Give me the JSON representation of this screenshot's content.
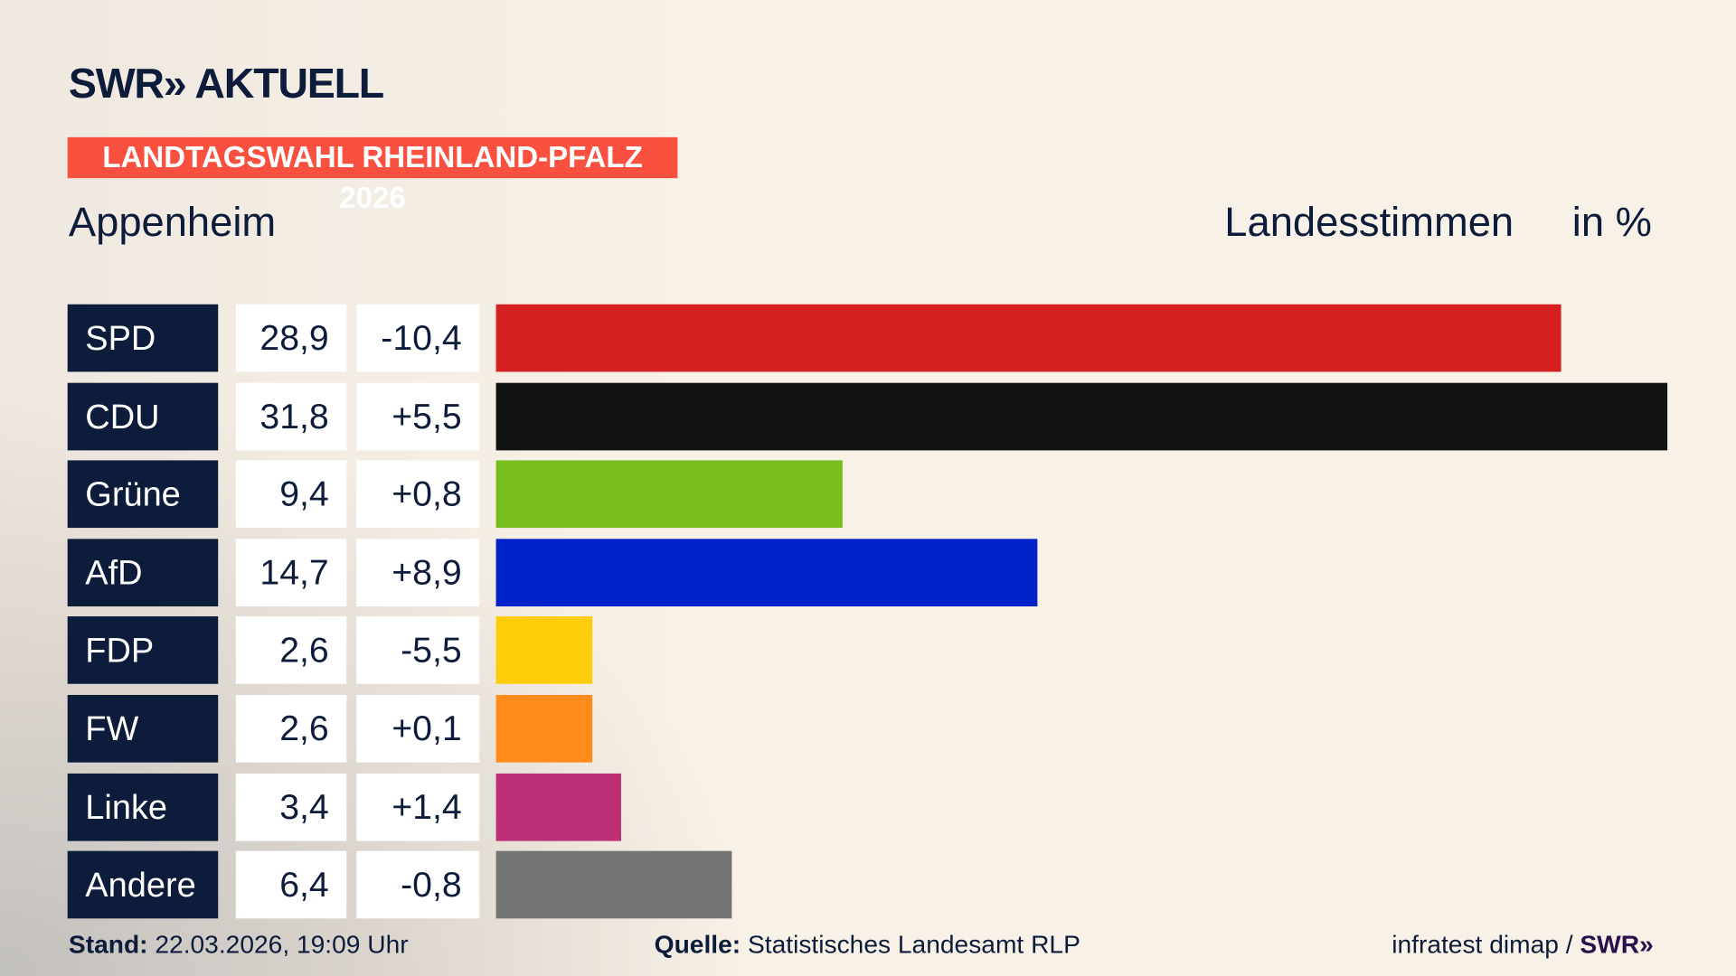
{
  "logo": "SWR» AKTUELL",
  "banner": "LANDTAGSWAHL RHEINLAND-PFALZ 2026",
  "place": "Appenheim",
  "header_label": "Landesstimmen",
  "header_unit": "in %",
  "chart_data": {
    "type": "bar",
    "title": "Landtagswahl Rheinland-Pfalz 2026 – Appenheim – Landesstimmen in %",
    "categories": [
      "SPD",
      "CDU",
      "Grüne",
      "AfD",
      "FDP",
      "FW",
      "Linke",
      "Andere"
    ],
    "values": [
      28.9,
      31.8,
      9.4,
      14.7,
      2.6,
      2.6,
      3.4,
      6.4
    ],
    "value_labels": [
      "28,9",
      "31,8",
      "9,4",
      "14,7",
      "2,6",
      "2,6",
      "3,4",
      "6,4"
    ],
    "diff_labels": [
      "-10,4",
      "+5,5",
      "+0,8",
      "+8,9",
      "-5,5",
      "+0,1",
      "+1,4",
      "-0,8"
    ],
    "diffs": [
      -10.4,
      5.5,
      0.8,
      8.9,
      -5.5,
      0.1,
      1.4,
      -0.8
    ],
    "colors": [
      "#d61f1f",
      "#121212",
      "#78bd1e",
      "#0022c8",
      "#ffcc0a",
      "#ff8c1a",
      "#bc2f74",
      "#737373"
    ],
    "xlim": [
      0,
      31.8
    ]
  },
  "footer": {
    "stand_label": "Stand:",
    "stand_value": "22.03.2026, 19:09 Uhr",
    "quelle_label": "Quelle:",
    "quelle_value": "Statistisches Landesamt RLP",
    "credit": "infratest dimap /",
    "credit_logo": "SWR»"
  }
}
